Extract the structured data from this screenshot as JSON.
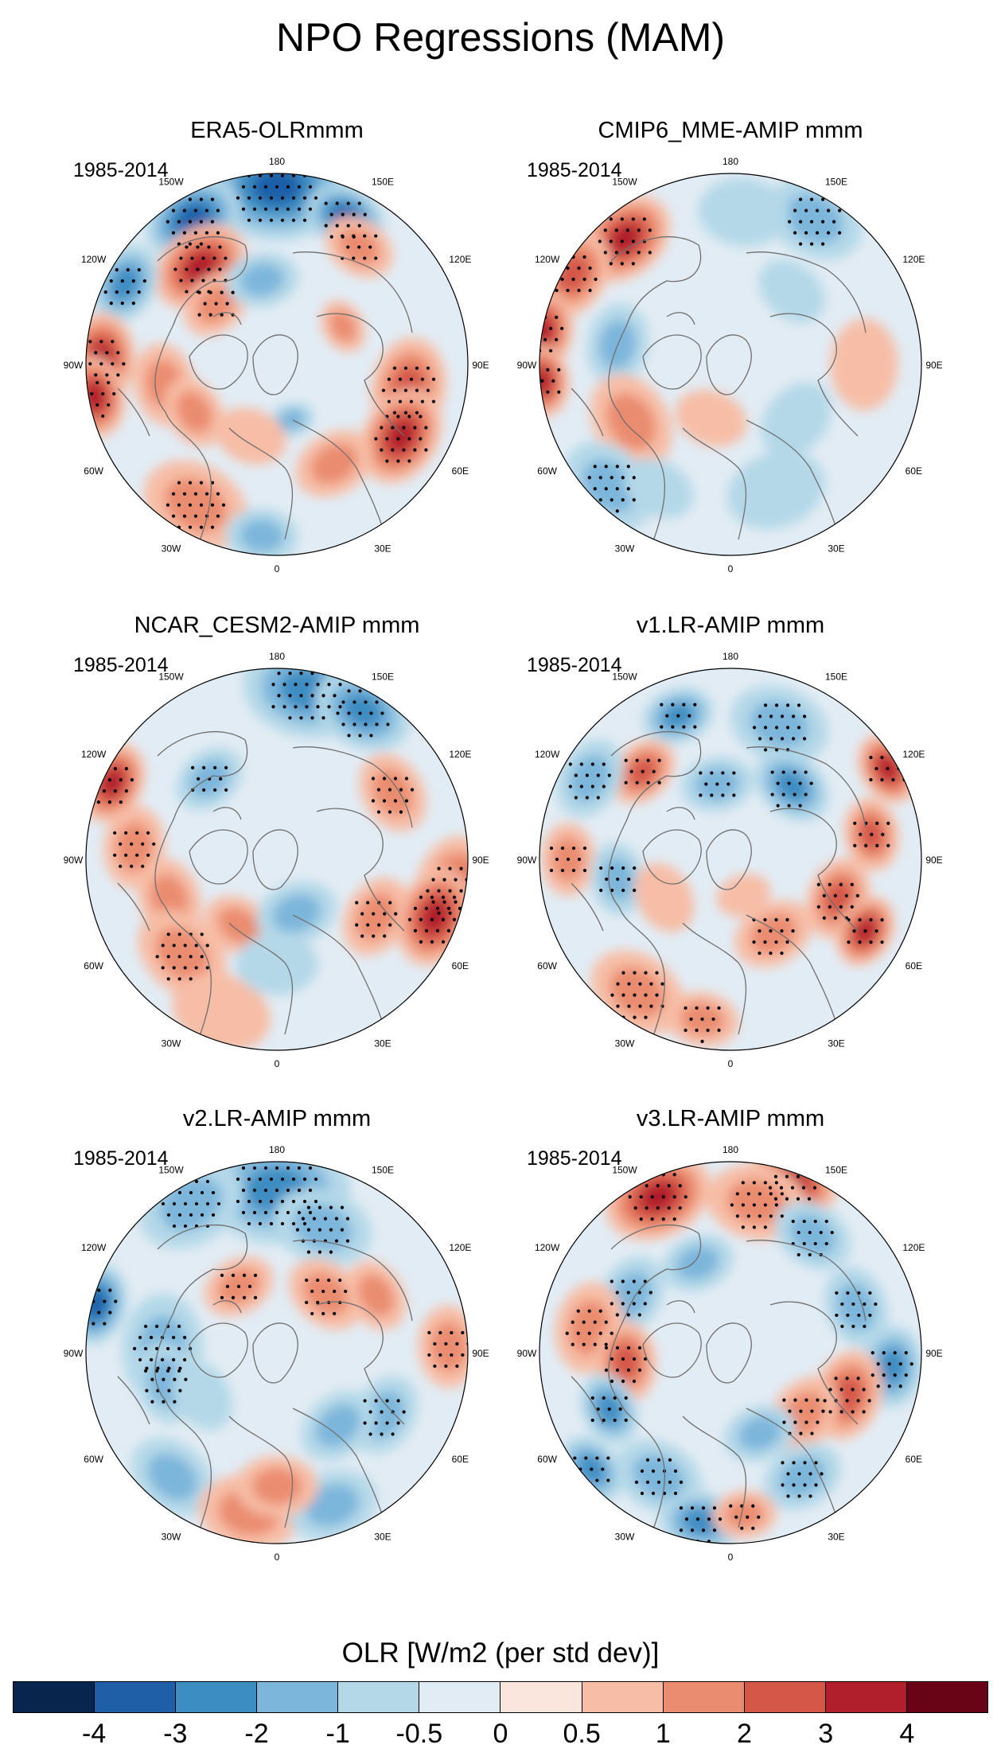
{
  "title": "NPO Regressions (MAM)",
  "panels": [
    {
      "title": "ERA5-OLRmmm",
      "period": "1985-2014",
      "pattern": "era5"
    },
    {
      "title": "CMIP6_MME-AMIP  mmm",
      "period": "1985-2014",
      "pattern": "cmip6"
    },
    {
      "title": "NCAR_CESM2-AMIP  mmm",
      "period": "1985-2014",
      "pattern": "cesm2"
    },
    {
      "title": "v1.LR-AMIP  mmm",
      "period": "1985-2014",
      "pattern": "v1"
    },
    {
      "title": "v2.LR-AMIP  mmm",
      "period": "1985-2014",
      "pattern": "v2"
    },
    {
      "title": "v3.LR-AMIP  mmm",
      "period": "1985-2014",
      "pattern": "v3"
    }
  ],
  "longitude_labels": [
    "180",
    "150E",
    "120E",
    "90E",
    "60E",
    "30E",
    "0",
    "30W",
    "60W",
    "90W",
    "120W",
    "150W"
  ],
  "colorbar": {
    "title": "OLR [W/m2 (per std dev)]",
    "colors": [
      "#08254e",
      "#1f5fa8",
      "#3c8dc2",
      "#7db6db",
      "#b4d8e8",
      "#e2ecf4",
      "#fbe6de",
      "#f7bda6",
      "#ea8c70",
      "#d45748",
      "#b11f2c",
      "#690417"
    ],
    "labels": [
      "-4",
      "-3",
      "-2",
      "-1",
      "-0.5",
      "0",
      "0.5",
      "1",
      "2",
      "3",
      "4"
    ]
  }
}
